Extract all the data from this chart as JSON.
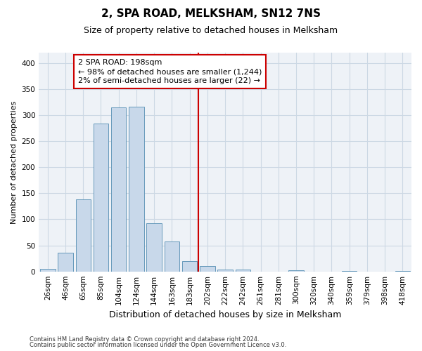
{
  "title": "2, SPA ROAD, MELKSHAM, SN12 7NS",
  "subtitle": "Size of property relative to detached houses in Melksham",
  "xlabel": "Distribution of detached houses by size in Melksham",
  "ylabel": "Number of detached properties",
  "footnote1": "Contains HM Land Registry data © Crown copyright and database right 2024.",
  "footnote2": "Contains public sector information licensed under the Open Government Licence v3.0.",
  "bar_labels": [
    "26sqm",
    "46sqm",
    "65sqm",
    "85sqm",
    "104sqm",
    "124sqm",
    "144sqm",
    "163sqm",
    "183sqm",
    "202sqm",
    "222sqm",
    "242sqm",
    "261sqm",
    "281sqm",
    "300sqm",
    "320sqm",
    "340sqm",
    "359sqm",
    "379sqm",
    "398sqm",
    "418sqm"
  ],
  "bar_values": [
    5,
    36,
    138,
    284,
    315,
    316,
    92,
    58,
    20,
    10,
    4,
    3,
    0,
    0,
    2,
    0,
    0,
    1,
    0,
    0,
    1
  ],
  "bar_color": "#c8d8ea",
  "bar_edge_color": "#6699bb",
  "grid_color": "#ccd8e4",
  "bg_color": "#eef2f7",
  "vline_x_index": 9,
  "vline_color": "#cc0000",
  "annotation_line1": "2 SPA ROAD: 198sqm",
  "annotation_line2": "← 98% of detached houses are smaller (1,244)",
  "annotation_line3": "2% of semi-detached houses are larger (22) →",
  "annotation_box_color": "#cc0000",
  "ylim": [
    0,
    420
  ],
  "yticks": [
    0,
    50,
    100,
    150,
    200,
    250,
    300,
    350,
    400
  ],
  "title_fontsize": 11,
  "subtitle_fontsize": 9,
  "xlabel_fontsize": 9,
  "ylabel_fontsize": 8,
  "tick_fontsize": 7.5,
  "annot_fontsize": 8
}
